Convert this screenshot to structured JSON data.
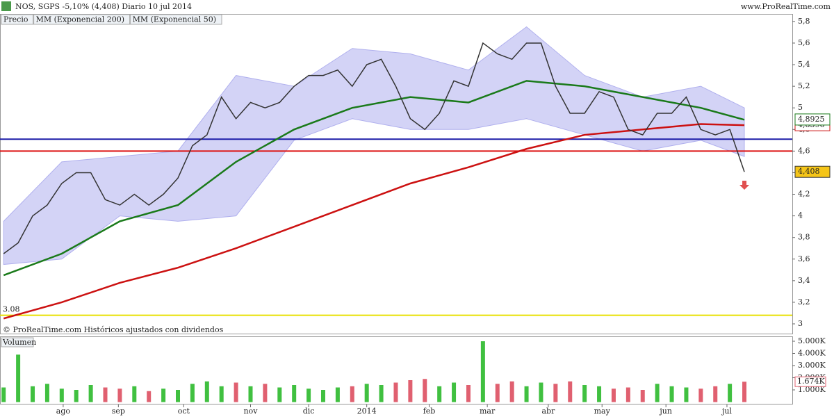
{
  "chart_data": {
    "type": "line",
    "title": "NOS, SGPS   -5,10% (4,408)   Diario   10 jul 2014",
    "site": "www.ProRealTime.com",
    "footer": "© ProRealTime.com  Históricos ajustados con dividendos",
    "legend_label": "Precio",
    "xlim": [
      -0.25,
      54.3
    ],
    "xticks": [
      {
        "value": 4.1,
        "label": "ago"
      },
      {
        "value": 7.9,
        "label": "sep"
      },
      {
        "value": 12.4,
        "label": "oct"
      },
      {
        "value": 17,
        "label": "nov"
      },
      {
        "value": 21,
        "label": "dic"
      },
      {
        "value": 25,
        "label": "2014"
      },
      {
        "value": 29.3,
        "label": "feb"
      },
      {
        "value": 33.3,
        "label": "mar"
      },
      {
        "value": 37.5,
        "label": "abr"
      },
      {
        "value": 41.2,
        "label": "may"
      },
      {
        "value": 45.6,
        "label": "jun"
      },
      {
        "value": 49.8,
        "label": "jul"
      }
    ],
    "ylim": [
      2.91,
      5.87
    ],
    "yticks": [
      {
        "value": 3,
        "label": "3"
      },
      {
        "value": 3.2,
        "label": "3,2"
      },
      {
        "value": 3.4,
        "label": "3,4"
      },
      {
        "value": 3.6,
        "label": "3,6"
      },
      {
        "value": 3.8,
        "label": "3,8"
      },
      {
        "value": 4,
        "label": "4"
      },
      {
        "value": 4.2,
        "label": "4,2"
      },
      {
        "value": 4.4,
        "label": "4,4"
      },
      {
        "value": 4.6,
        "label": "4,6"
      },
      {
        "value": 4.8,
        "label": "4,8"
      },
      {
        "value": 5,
        "label": "5"
      },
      {
        "value": 5.2,
        "label": "5,2"
      },
      {
        "value": 5.4,
        "label": "5,4"
      },
      {
        "value": 5.6,
        "label": "5,6"
      },
      {
        "value": 5.8,
        "label": "5,8"
      }
    ],
    "band": {
      "color": "#c8c8f4",
      "x": [
        0,
        4,
        8,
        12,
        16,
        20,
        24,
        28,
        32,
        36,
        40,
        44,
        48,
        51
      ],
      "upper": [
        3.95,
        4.5,
        4.55,
        4.6,
        5.3,
        5.2,
        5.55,
        5.5,
        5.35,
        5.75,
        5.3,
        5.1,
        5.2,
        5.0
      ],
      "lower": [
        3.55,
        3.6,
        4.0,
        3.95,
        4.0,
        4.7,
        4.9,
        4.8,
        4.8,
        4.9,
        4.75,
        4.6,
        4.7,
        4.55
      ]
    },
    "series": [
      {
        "name": "MM (Exponencial 200)",
        "color": "#cc1111",
        "x": [
          0,
          4,
          8,
          12,
          16,
          20,
          24,
          28,
          32,
          36,
          40,
          44,
          48,
          51
        ],
        "values": [
          3.05,
          3.2,
          3.38,
          3.52,
          3.7,
          3.9,
          4.1,
          4.3,
          4.45,
          4.62,
          4.75,
          4.8,
          4.85,
          4.84
        ],
        "end_label": {
          "value": 4.8396,
          "label": "4,8396"
        }
      },
      {
        "name": "MM (Exponencial 50)",
        "color": "#1a7a1a",
        "x": [
          0,
          4,
          8,
          12,
          16,
          20,
          24,
          28,
          32,
          36,
          40,
          44,
          48,
          51
        ],
        "values": [
          3.45,
          3.65,
          3.95,
          4.1,
          4.5,
          4.8,
          5.0,
          5.1,
          5.05,
          5.25,
          5.2,
          5.1,
          5.0,
          4.89
        ],
        "end_label": {
          "value": 4.8925,
          "label": "4,8925"
        }
      },
      {
        "color": "#333333",
        "x": [
          0,
          1,
          2,
          3,
          4,
          5,
          6,
          7,
          8,
          9,
          10,
          11,
          12,
          13,
          14,
          15,
          16,
          17,
          18,
          19,
          20,
          21,
          22,
          23,
          24,
          25,
          26,
          27,
          28,
          29,
          30,
          31,
          32,
          33,
          34,
          35,
          36,
          37,
          38,
          39,
          40,
          41,
          42,
          43,
          44,
          45,
          46,
          47,
          48,
          49,
          50,
          51
        ],
        "values": [
          3.65,
          3.75,
          4.0,
          4.1,
          4.3,
          4.4,
          4.4,
          4.15,
          4.1,
          4.2,
          4.1,
          4.2,
          4.35,
          4.65,
          4.75,
          5.1,
          4.9,
          5.05,
          5.0,
          5.05,
          5.2,
          5.3,
          5.3,
          5.35,
          5.2,
          5.4,
          5.45,
          5.2,
          4.9,
          4.8,
          4.95,
          5.25,
          5.2,
          5.6,
          5.5,
          5.45,
          5.6,
          5.6,
          5.2,
          4.95,
          4.95,
          5.15,
          5.1,
          4.8,
          4.75,
          4.95,
          4.95,
          5.1,
          4.8,
          4.75,
          4.8,
          4.408
        ],
        "end_label": {
          "value": 4.408,
          "label": "4,408"
        }
      }
    ],
    "hlines": [
      {
        "value": 4.71,
        "color": "#1c1ca8"
      },
      {
        "value": 4.6,
        "color": "#dd1111"
      },
      {
        "value": 3.08,
        "color": "#e8e000"
      }
    ],
    "volume": {
      "title": "Volumen",
      "ylim": [
        -200,
        5400
      ],
      "yticks": [
        {
          "value": 1000,
          "label": "1.000K"
        },
        {
          "value": 2000,
          "label": "2.000K"
        },
        {
          "value": 3000,
          "label": "3.000K"
        },
        {
          "value": 4000,
          "label": "4.000K"
        },
        {
          "value": 5000,
          "label": "5.000K"
        }
      ],
      "values": [
        1200,
        3900,
        1300,
        1500,
        1100,
        1000,
        1400,
        1200,
        1100,
        1300,
        900,
        1100,
        1000,
        1500,
        1700,
        1300,
        1600,
        1300,
        1500,
        1200,
        1400,
        1100,
        1000,
        1200,
        1300,
        1500,
        1400,
        1600,
        1800,
        1900,
        1300,
        1600,
        1400,
        5000,
        1500,
        1700,
        1300,
        1600,
        1500,
        1700,
        1400,
        1300,
        1100,
        1200,
        1000,
        1500,
        1300,
        1200,
        1100,
        1300,
        1500,
        1674
      ],
      "end_label": {
        "value": 1674,
        "label": "1.674K"
      }
    }
  }
}
